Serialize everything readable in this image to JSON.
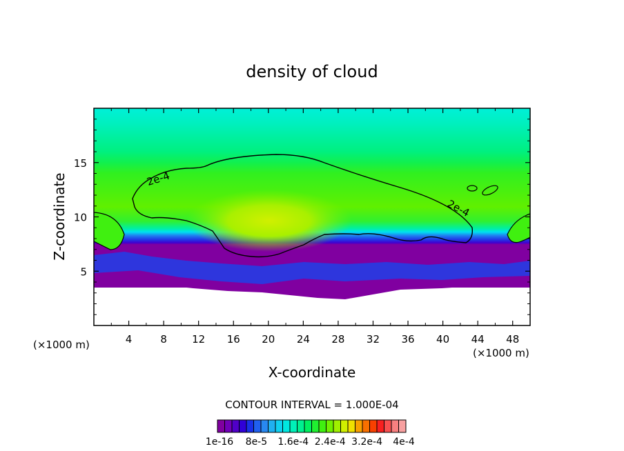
{
  "chart_data": {
    "type": "heatmap",
    "title": "density of cloud",
    "xlabel": "X-coordinate",
    "ylabel": "Z-coordinate",
    "xunit": "(×1000 m)",
    "yunit": "(×1000 m)",
    "xlim": [
      0,
      50
    ],
    "ylim": [
      0,
      20
    ],
    "xticks": [
      4,
      8,
      12,
      16,
      20,
      24,
      28,
      32,
      36,
      40,
      44,
      48
    ],
    "yticks": [
      5,
      10,
      15
    ],
    "contour_interval_text": "CONTOUR INTERVAL = 1.000E-04",
    "contour_labels": [
      {
        "text": "2e-4",
        "x": 7.5,
        "z": 13.2
      },
      {
        "text": "2e-4",
        "x": 41.6,
        "z": 10.5
      }
    ],
    "colorbar": {
      "colors": [
        "#8000a0",
        "#7000b8",
        "#5000c8",
        "#3000d8",
        "#1830e8",
        "#2060f0",
        "#2888f0",
        "#20b0f0",
        "#10d0f0",
        "#00e8e0",
        "#00f0b8",
        "#00f090",
        "#00f060",
        "#20f030",
        "#40f010",
        "#70f000",
        "#a0f000",
        "#d0f000",
        "#f0e000",
        "#f8a000",
        "#f87000",
        "#f84000",
        "#f82020",
        "#f85050",
        "#f88080",
        "#f8a0a0"
      ],
      "labels": [
        "1e-16",
        "8e-5",
        "1.6e-4",
        "2.4e-4",
        "3.2e-4",
        "4e-4"
      ]
    }
  }
}
